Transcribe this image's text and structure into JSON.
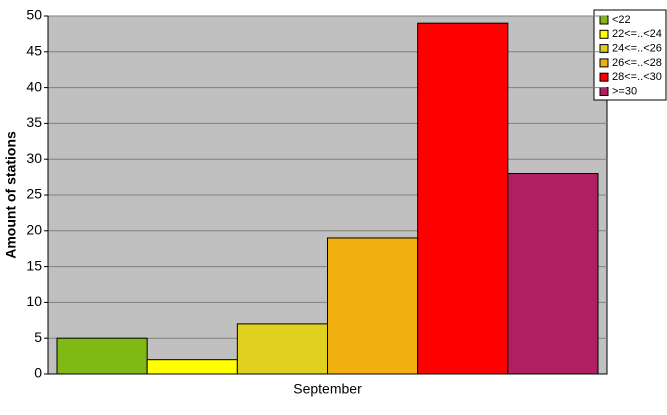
{
  "chart_data": {
    "type": "bar",
    "y_label": "Amount of stations",
    "categories": [
      "September"
    ],
    "series": [
      {
        "name": "<22",
        "color": "#80b814",
        "values": [
          5
        ]
      },
      {
        "name": "22<=..<24",
        "color": "#ffff00",
        "values": [
          2
        ]
      },
      {
        "name": "24<=..<26",
        "color": "#e0d020",
        "values": [
          7
        ]
      },
      {
        "name": "26<=..<28",
        "color": "#f0b010",
        "values": [
          19
        ]
      },
      {
        "name": "28<=..<30",
        "color": "#ff0000",
        "values": [
          49
        ]
      },
      {
        "name": ">=30",
        "color": "#b02060",
        "values": [
          28
        ]
      }
    ],
    "ylim": [
      0,
      50
    ],
    "yticks": [
      0,
      5,
      10,
      15,
      20,
      25,
      30,
      35,
      40,
      45,
      50
    ],
    "grid": true,
    "legend": "top-right"
  }
}
